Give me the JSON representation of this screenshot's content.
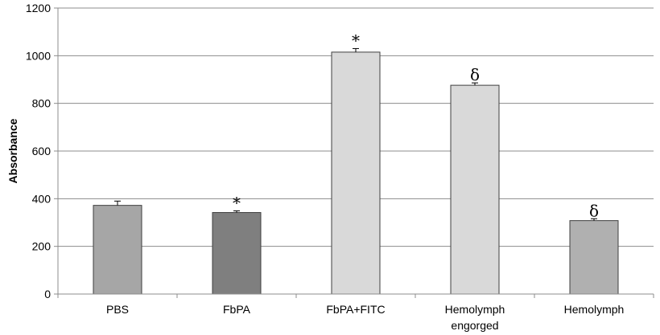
{
  "chart_data": {
    "type": "bar",
    "title": "",
    "xlabel": "",
    "ylabel": "Absorbance",
    "ylim": [
      0,
      1200
    ],
    "yticks": [
      0,
      200,
      400,
      600,
      800,
      1000,
      1200
    ],
    "grid": true,
    "legend": "none",
    "categories": [
      {
        "label": "PBS",
        "label2": ""
      },
      {
        "label": "FbPA",
        "label2": ""
      },
      {
        "label": "FbPA+FITC",
        "label2": ""
      },
      {
        "label": "Hemolymph",
        "label2": "engorged"
      },
      {
        "label": "Hemolymph",
        "label2": ""
      }
    ],
    "values": [
      372,
      342,
      1015,
      876,
      308
    ],
    "errors": [
      18,
      7,
      15,
      10,
      8
    ],
    "annotations": [
      "",
      "*",
      "*",
      "δ",
      "δ"
    ],
    "bar_colors": [
      "#a6a6a6",
      "#7f7f7f",
      "#d9d9d9",
      "#d9d9d9",
      "#b0b0b0"
    ]
  }
}
